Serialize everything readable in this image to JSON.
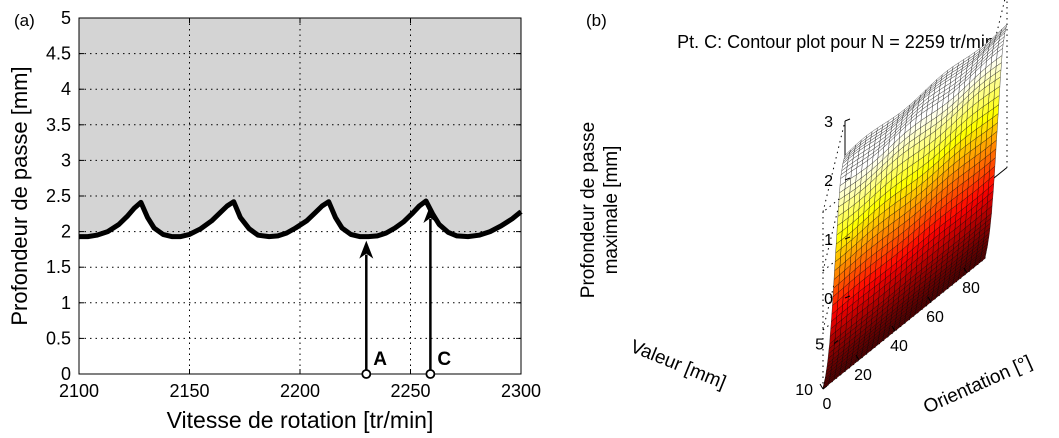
{
  "chart_data": [
    {
      "panel_label": "(a)",
      "type": "line",
      "title": "",
      "xlabel": "Vitesse de rotation [tr/min]",
      "ylabel": "Profondeur de passe [mm]",
      "xlim": [
        2100,
        2300
      ],
      "ylim": [
        0,
        5
      ],
      "grid": true,
      "shaded_region": "above curve (unstable zone)",
      "x_ticks": [
        "2100",
        "2150",
        "2200",
        "2250",
        "2300"
      ],
      "y_ticks": [
        "0",
        "0.5",
        "1",
        "1.5",
        "2",
        "2.5",
        "3",
        "3.5",
        "4",
        "4.5",
        "5"
      ],
      "series": [
        {
          "x": [
            2100,
            2104,
            2108,
            2113,
            2118,
            2122,
            2125,
            2128,
            2131,
            2134,
            2138,
            2142,
            2146,
            2150,
            2155,
            2160,
            2164,
            2167,
            2170,
            2173,
            2177,
            2181,
            2186,
            2190,
            2194,
            2198,
            2203,
            2207,
            2210,
            2213,
            2216,
            2219,
            2223,
            2227,
            2231,
            2235,
            2239,
            2243,
            2247,
            2251,
            2254,
            2257,
            2260,
            2263,
            2267,
            2271,
            2276,
            2281,
            2286,
            2291,
            2296,
            2300
          ],
          "values": [
            1.93,
            1.93,
            1.95,
            2.0,
            2.1,
            2.22,
            2.33,
            2.41,
            2.2,
            2.05,
            1.96,
            1.93,
            1.93,
            1.96,
            2.04,
            2.15,
            2.27,
            2.36,
            2.42,
            2.2,
            2.04,
            1.95,
            1.93,
            1.94,
            1.98,
            2.05,
            2.15,
            2.27,
            2.36,
            2.42,
            2.2,
            2.05,
            1.96,
            1.93,
            1.93,
            1.94,
            1.98,
            2.05,
            2.14,
            2.26,
            2.36,
            2.43,
            2.25,
            2.1,
            1.99,
            1.94,
            1.93,
            1.95,
            2.0,
            2.08,
            2.18,
            2.28
          ]
        }
      ],
      "annotations": [
        {
          "label": "A",
          "x": 2230,
          "y": 1.93
        },
        {
          "label": "C",
          "x": 2259,
          "y": 2.43
        }
      ]
    },
    {
      "panel_label": "(b)",
      "type": "surface",
      "title": "Pt. C: Contour plot pour N = 2259 tr/min",
      "xlabel": "Valeur [mm]",
      "ylabel": "Orientation [°]",
      "zlabel": "Profondeur de passe maximale [mm]",
      "zlabel_lines": [
        "Profondeur de passe",
        "maximale [mm]"
      ],
      "xlim": [
        0,
        10
      ],
      "ylim": [
        0,
        90
      ],
      "zlim": [
        0,
        3
      ],
      "x_ticks": [
        "5",
        "10"
      ],
      "y_ticks": [
        "0",
        "20",
        "40",
        "60",
        "80"
      ],
      "z_ticks": [
        "0",
        "1",
        "2",
        "3"
      ],
      "colormap": "hot",
      "surface_profile_vs_valeur": {
        "x": [
          0,
          1,
          2,
          3,
          4,
          5,
          6,
          7,
          8,
          9,
          10
        ],
        "z": [
          2.42,
          2.4,
          2.3,
          2.0,
          1.55,
          1.1,
          0.65,
          0.3,
          0.12,
          0.03,
          0.0
        ]
      }
    }
  ]
}
